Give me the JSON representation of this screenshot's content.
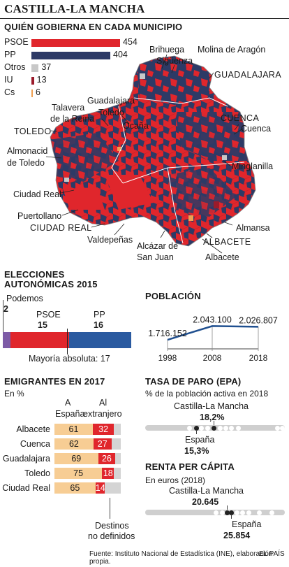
{
  "title": "CASTILLA-LA MANCHA",
  "subtitle": "QUIÉN GOBIERNA EN CADA MUNICIPIO",
  "colors": {
    "psoe": "#e0262c",
    "pp": "#2d3a66",
    "otros": "#c8c8c8",
    "iu": "#9b1b2b",
    "cs": "#f0a050",
    "podemos": "#7d5ba6",
    "ppBlue": "#2a5aa0",
    "line": "#1f4f8f"
  },
  "municipios": [
    {
      "party": "PSOE",
      "value": "454"
    },
    {
      "party": "PP",
      "value": "404"
    },
    {
      "party": "Otros",
      "value": "37"
    },
    {
      "party": "IU",
      "value": "13"
    },
    {
      "party": "Cs",
      "value": "6"
    }
  ],
  "map_labels": {
    "brihuega": "Brihuega",
    "siguenza": "Sigüenza",
    "molina": "Molina de Aragón",
    "guadalajara_prov": "GUADALAJARA",
    "guadalajara": "Guadalajara",
    "talavera1": "Talavera",
    "talavera2": "de la Reina",
    "toledo_city": "Toledo",
    "ocana": "Ocaña",
    "toledo_prov": "TOLEDO",
    "cuenca_prov": "CUENCA",
    "cuenca": "Cuenca",
    "almonacid1": "Almonacid",
    "almonacid2": "de Toledo",
    "minglanilla": "Minglanilla",
    "ciudad_real": "Ciudad Real",
    "puertollano": "Puertollano",
    "ciudad_real_prov": "CIUDAD REAL",
    "almansa": "Almansa",
    "valdepenas": "Valdepeñas",
    "alcazar1": "Alcázar de",
    "alcazar2": "San Juan",
    "albacete_prov": "ALBACETE",
    "albacete": "Albacete"
  },
  "elecciones": {
    "title1": "ELECCIONES",
    "title2": "AUTONÓMICAS 2015",
    "podemos_label": "Podemos",
    "podemos_value": "2",
    "psoe_label": "PSOE",
    "psoe_value": "15",
    "pp_label": "PP",
    "pp_value": "16",
    "mayoria": "Mayoría absoluta: 17"
  },
  "poblacion": {
    "title": "POBLACIÓN",
    "values": [
      "1.716.152",
      "2.043.100",
      "2.026.807"
    ],
    "years": [
      "1998",
      "2008",
      "2018"
    ]
  },
  "emigrantes": {
    "title": "EMIGRANTES EN 2017",
    "unit": "En %",
    "col_a1": "A",
    "col_a2": "España",
    "col_b1": "Al",
    "col_b2": "extranjero",
    "footer1": "Destinos",
    "footer2": "no definidos",
    "rows": [
      {
        "name": "Albacete",
        "a": "61",
        "b": "32"
      },
      {
        "name": "Cuenca",
        "a": "62",
        "b": "27"
      },
      {
        "name": "Guadalajara",
        "a": "69",
        "b": "26"
      },
      {
        "name": "Toledo",
        "a": "75",
        "b": "18"
      },
      {
        "name": "Ciudad Real",
        "a": "65",
        "b": "14"
      }
    ]
  },
  "paro": {
    "title": "TASA DE PARO (EPA)",
    "unit": "% de la población activa en 2018",
    "clm_label": "Castilla-La Mancha",
    "clm_value": "18,2%",
    "es_label": "España",
    "es_value": "15,3%"
  },
  "renta": {
    "title": "RENTA PER CÁPITA",
    "unit": "En euros (2018)",
    "clm_label": "Castilla-La Mancha",
    "clm_value": "20.645",
    "es_label": "España",
    "es_value": "25.854"
  },
  "footer": {
    "source": "Fuente: Instituto Nacional de Estadística (INE), elaboración propia.",
    "brand": "EL PAÍS"
  },
  "chart_data": [
    {
      "type": "bar",
      "title": "QUIÉN GOBIERNA EN CADA MUNICIPIO",
      "categories": [
        "PSOE",
        "PP",
        "Otros",
        "IU",
        "Cs"
      ],
      "values": [
        454,
        404,
        37,
        13,
        6
      ]
    },
    {
      "type": "bar",
      "title": "ELECCIONES AUTONÓMICAS 2015",
      "categories": [
        "Podemos",
        "PSOE",
        "PP"
      ],
      "values": [
        2,
        15,
        16
      ],
      "annotations": [
        "Mayoría absoluta: 17"
      ]
    },
    {
      "type": "line",
      "title": "POBLACIÓN",
      "x": [
        1998,
        2008,
        2018
      ],
      "y": [
        1716152,
        2043100,
        2026807
      ]
    },
    {
      "type": "bar",
      "title": "EMIGRANTES EN 2017",
      "categories": [
        "Albacete",
        "Cuenca",
        "Guadalajara",
        "Toledo",
        "Ciudad Real"
      ],
      "series": [
        {
          "name": "A España",
          "values": [
            61,
            62,
            69,
            75,
            65
          ]
        },
        {
          "name": "Al extranjero",
          "values": [
            32,
            27,
            26,
            18,
            14
          ]
        }
      ]
    },
    {
      "type": "scatter",
      "title": "TASA DE PARO (EPA)",
      "points": [
        {
          "name": "Castilla-La Mancha",
          "value": 18.2
        },
        {
          "name": "España",
          "value": 15.3
        }
      ]
    },
    {
      "type": "scatter",
      "title": "RENTA PER CÁPITA",
      "points": [
        {
          "name": "Castilla-La Mancha",
          "value": 20645
        },
        {
          "name": "España",
          "value": 25854
        }
      ]
    }
  ]
}
